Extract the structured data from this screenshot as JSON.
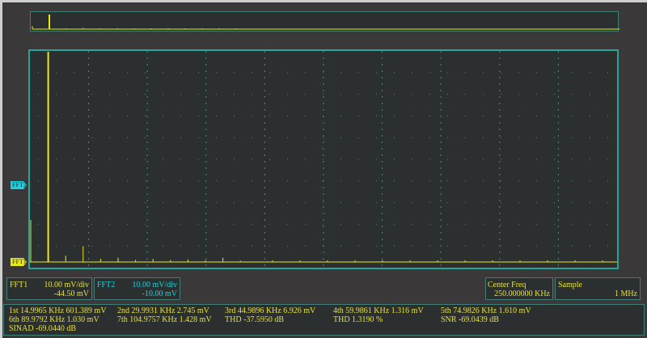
{
  "colors": {
    "fft1": "#e8e81a",
    "fft2": "#1ad3e0",
    "grid": "#3f8f88",
    "background": "#2c2f2f"
  },
  "markers": {
    "fft1": "FFT1",
    "fft2": "FFT2"
  },
  "spectrum": {
    "spikes": [
      {
        "bin": 0,
        "level": 0.2
      },
      {
        "bin": 1,
        "level": 1.0
      },
      {
        "bin": 2,
        "level": 0.03
      },
      {
        "bin": 3,
        "level": 0.075
      },
      {
        "bin": 4,
        "level": 0.015
      },
      {
        "bin": 5,
        "level": 0.02
      },
      {
        "bin": 6,
        "level": 0.01
      },
      {
        "bin": 7,
        "level": 0.015
      },
      {
        "bin": 8,
        "level": 0.01
      },
      {
        "bin": 9,
        "level": 0.012
      },
      {
        "bin": 10,
        "level": 0.008
      },
      {
        "bin": 11,
        "level": 0.02
      },
      {
        "bin": 12,
        "level": 0.006
      }
    ]
  },
  "channels": [
    {
      "name": "FFT1",
      "scale": "10.00 mV/div",
      "offset": "-44.50 mV"
    },
    {
      "name": "FFT2",
      "scale": "10.00 mV/div",
      "offset": "-10.00 mV"
    }
  ],
  "center_freq": {
    "label": "Center Freq",
    "value": "250.000000 KHz"
  },
  "sample": {
    "label": "Sample",
    "value": "1 MHz"
  },
  "measurements": {
    "row1": [
      "1st 14.9965 KHz  601.389 mV",
      "2nd 29.9931 KHz  2.745 mV",
      "3rd 44.9896 KHz  6.926 mV",
      "4th 59.9861 KHz  1.316 mV",
      "5th 74.9826 KHz  1.610 mV"
    ],
    "row2": [
      "6th 89.9792 KHz  1.030 mV",
      "7th 104.9757 KHz  1.428 mV",
      "THD  -37.5950 dB",
      "THD  1.3190 %",
      "SNR  -69.0439 dB"
    ],
    "row3": [
      "SINAD  -69.0440 dB"
    ]
  }
}
